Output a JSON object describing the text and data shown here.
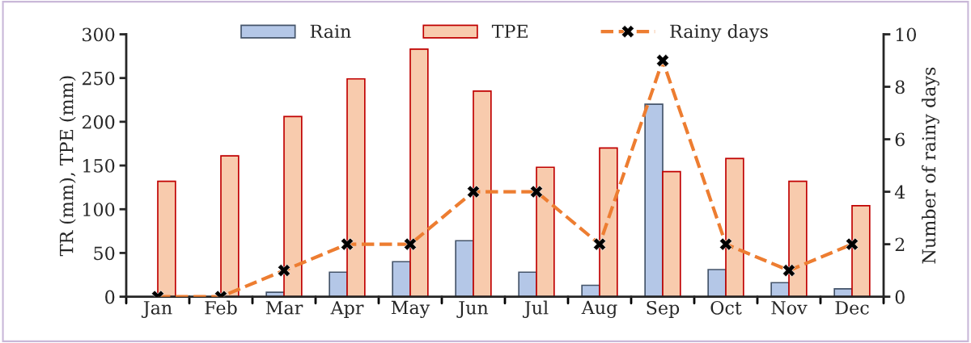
{
  "chart_data": {
    "type": "bar",
    "categories": [
      "Jan",
      "Feb",
      "Mar",
      "Apr",
      "May",
      "Jun",
      "Jul",
      "Aug",
      "Sep",
      "Oct",
      "Nov",
      "Dec"
    ],
    "ylabel": "TR (mm), TPE (mm)",
    "y2label": "Number of rainy days",
    "series": [
      {
        "name": "Rain",
        "color": "#b4c7e7",
        "values": [
          null,
          null,
          5,
          28,
          40,
          64,
          28,
          13,
          220,
          31,
          16,
          9
        ]
      },
      {
        "name": "TPE",
        "color": "#f8cbad",
        "values": [
          132,
          161,
          206,
          249,
          283,
          235,
          148,
          170,
          143,
          158,
          132,
          104
        ]
      },
      {
        "name": "Rainy days",
        "type": "line",
        "axis": "y2",
        "color": "#ed7d31",
        "marker": "cross",
        "line_style": "dashed",
        "values": [
          0,
          0,
          1,
          2,
          2,
          4,
          4,
          2,
          9,
          2,
          1,
          2
        ]
      }
    ],
    "ylim": [
      0,
      300
    ],
    "yticks": [
      0,
      50,
      100,
      150,
      200,
      250,
      300
    ],
    "y2lim": [
      0,
      10
    ],
    "y2ticks": [
      0,
      2,
      4,
      6,
      8,
      10
    ],
    "grid": false,
    "legend": "top"
  }
}
